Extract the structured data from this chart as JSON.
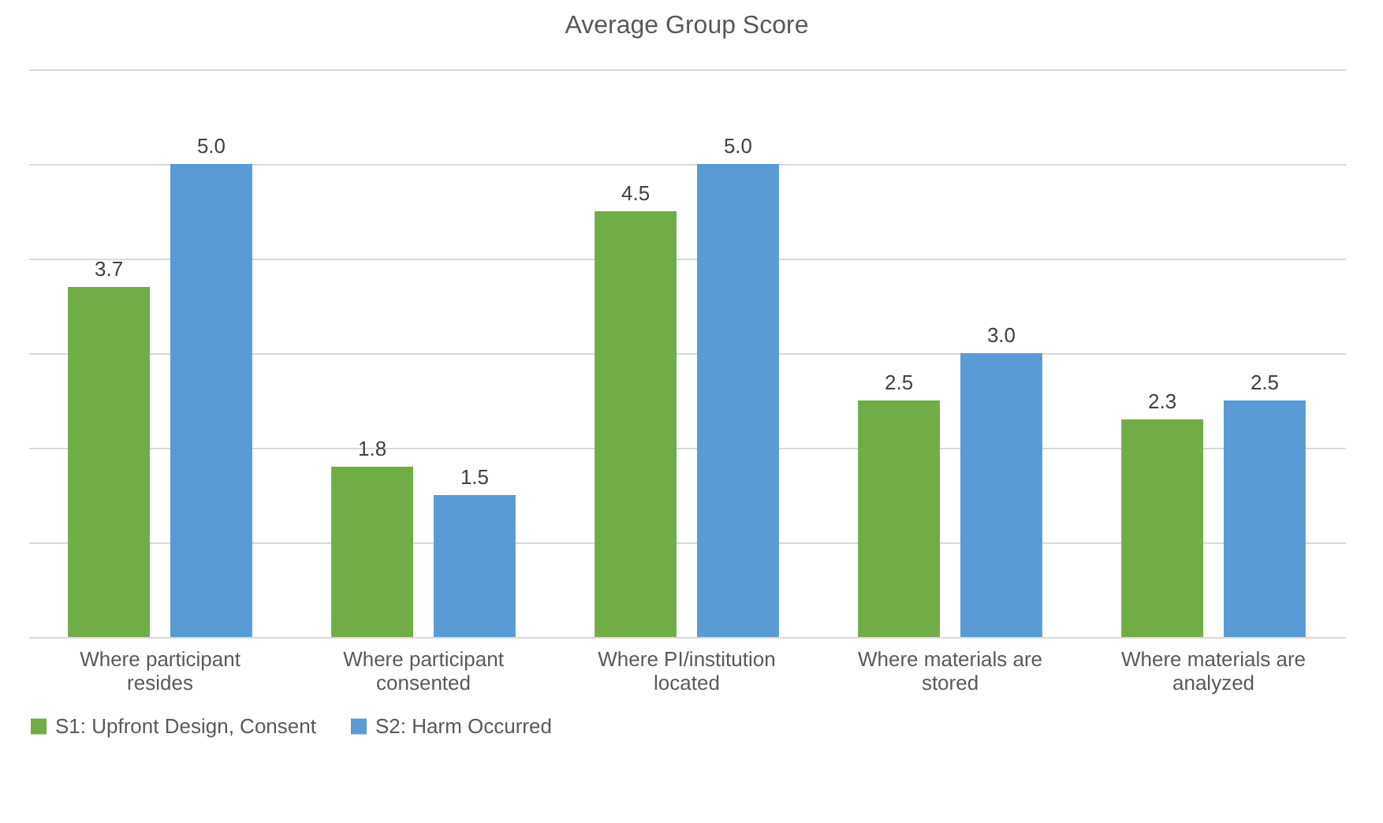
{
  "chart_data": {
    "type": "bar",
    "title": "Average Group Score",
    "categories": [
      "Where participant resides",
      "Where participant consented",
      "Where PI/institution located",
      "Where materials are stored",
      "Where materials are analyzed"
    ],
    "series": [
      {
        "name": "S1: Upfront Design, Consent",
        "color": "#70ad47",
        "values": [
          3.7,
          1.8,
          4.5,
          2.5,
          2.3
        ],
        "value_labels": [
          "3.7",
          "1.8",
          "4.5",
          "2.5",
          "2.3"
        ]
      },
      {
        "name": "S2: Harm Occurred",
        "color": "#5b9bd5",
        "values": [
          5.0,
          1.5,
          5.0,
          3.0,
          2.5
        ],
        "value_labels": [
          "5.0",
          "1.5",
          "5.0",
          "3.0",
          "2.5"
        ]
      }
    ],
    "ylim": [
      0,
      6
    ],
    "yticks": [
      {
        "value": 0,
        "label": null
      },
      {
        "value": 1,
        "label": null
      },
      {
        "value": 2,
        "label": null
      },
      {
        "value": 3,
        "label": null
      },
      {
        "value": 4,
        "label": null
      },
      {
        "value": 5,
        "label": null
      },
      {
        "value": 6,
        "label": null
      }
    ],
    "tick_labels": "x",
    "grid": "y",
    "legend": "bottom"
  }
}
